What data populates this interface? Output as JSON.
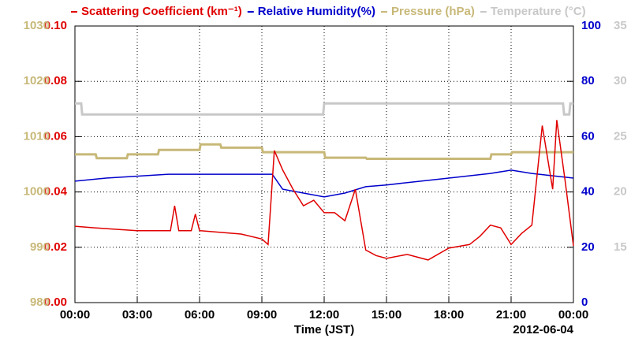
{
  "chart_data": {
    "type": "line",
    "xlabel": "Time (JST)",
    "annotation": "2012-06-04",
    "xlim": [
      0,
      24
    ],
    "xticks": [
      {
        "value": 0,
        "label": "00:00"
      },
      {
        "value": 3,
        "label": "03:00"
      },
      {
        "value": 6,
        "label": "06:00"
      },
      {
        "value": 9,
        "label": "09:00"
      },
      {
        "value": 12,
        "label": "12:00"
      },
      {
        "value": 15,
        "label": "15:00"
      },
      {
        "value": 18,
        "label": "18:00"
      },
      {
        "value": 21,
        "label": "21:00"
      },
      {
        "value": 24,
        "label": "00:00"
      }
    ],
    "grid": true,
    "ylim": [
      0,
      0.1
    ],
    "yticks": [
      {
        "value": 0,
        "label": "0.00"
      },
      {
        "value": 0.02,
        "label": "0.02"
      },
      {
        "value": 0.04,
        "label": "0.04"
      },
      {
        "value": 0.06,
        "label": "0.06"
      },
      {
        "value": 0.08,
        "label": "0.08"
      },
      {
        "value": 0.1,
        "label": "0.10"
      }
    ],
    "y2lim": [
      0,
      100
    ],
    "y2ticks": [
      0,
      20,
      40,
      60,
      80,
      100
    ],
    "y3lim": [
      980,
      1030
    ],
    "y3ticks": [
      980,
      990,
      1000,
      1010,
      1020,
      1030
    ],
    "y4lim": [
      10,
      35
    ],
    "y4ticks": [
      15,
      20,
      25,
      30,
      35
    ],
    "series": [
      {
        "name": "Scattering Coefficient (km⁻¹)",
        "color": "#e00000",
        "axis": "y",
        "x": [
          0,
          1,
          3,
          4.6,
          4.8,
          5,
          5.6,
          5.8,
          6,
          8,
          9,
          9.3,
          9.6,
          10,
          10.5,
          11,
          11.5,
          12,
          12.5,
          13,
          13.5,
          14,
          14.5,
          15,
          16,
          17,
          18,
          19,
          19.5,
          20,
          20.5,
          21,
          21.5,
          22,
          22.5,
          23,
          23.2,
          23.6,
          24
        ],
        "values": [
          0.0276,
          0.027,
          0.026,
          0.026,
          0.035,
          0.026,
          0.026,
          0.032,
          0.026,
          0.0248,
          0.023,
          0.021,
          0.055,
          0.048,
          0.041,
          0.035,
          0.037,
          0.0325,
          0.0325,
          0.0296,
          0.041,
          0.019,
          0.017,
          0.016,
          0.0174,
          0.0154,
          0.0197,
          0.021,
          0.024,
          0.028,
          0.027,
          0.021,
          0.025,
          0.028,
          0.064,
          0.041,
          0.066,
          0.044,
          0.0205
        ]
      },
      {
        "name": "Relative Humidity(%)",
        "color": "#0000cc",
        "axis": "y2",
        "x": [
          0,
          1.5,
          4.5,
          9.5,
          10,
          11,
          12,
          13,
          14,
          15,
          16,
          18,
          20,
          21,
          22,
          24
        ],
        "values": [
          43.9,
          45,
          46.4,
          46.4,
          41,
          39.6,
          38.2,
          39.6,
          41.9,
          42.5,
          43.4,
          45,
          46.7,
          47.9,
          46.7,
          45
        ]
      },
      {
        "name": "Pressure (hPa)",
        "color": "#c8b878",
        "axis": "y3",
        "x": [
          0,
          1,
          1.05,
          2.5,
          2.55,
          4,
          4.05,
          6,
          6.05,
          7,
          7.05,
          9,
          9.05,
          12,
          12.05,
          14,
          14.05,
          20,
          20.05,
          21,
          21.05,
          24
        ],
        "values": [
          1006.8,
          1006.8,
          1006.1,
          1006.1,
          1006.8,
          1006.8,
          1007.6,
          1007.6,
          1008.6,
          1008.6,
          1008,
          1008,
          1007.2,
          1007.2,
          1006.2,
          1006.2,
          1006,
          1006,
          1006.8,
          1006.8,
          1007.2,
          1007.2
        ]
      },
      {
        "name": "Temperature (°C)",
        "color": "#c8c8c8",
        "axis": "y4",
        "x": [
          0,
          0.3,
          0.35,
          11.95,
          12,
          23.5,
          23.55,
          23.8,
          23.85,
          24
        ],
        "values": [
          28,
          28,
          27,
          27,
          28,
          28,
          27,
          27,
          28,
          28
        ]
      }
    ]
  }
}
